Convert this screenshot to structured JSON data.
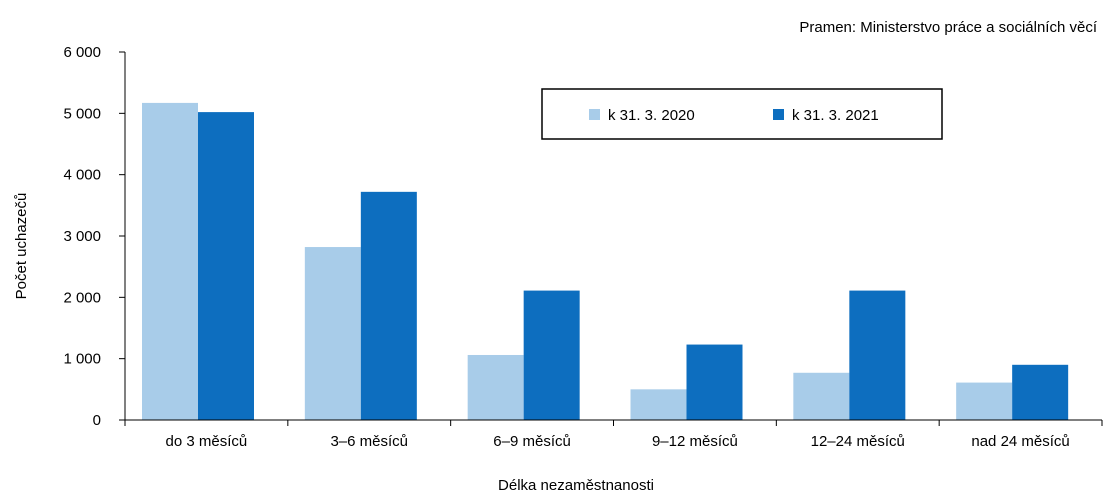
{
  "source_note": "Pramen: Ministerstvo práce a sociálních věcí",
  "chart_data": {
    "type": "bar",
    "categories": [
      "do 3 měsíců",
      "3–6 měsíců",
      "6–9 měsíců",
      "9–12 měsíců",
      "12–24 měsíců",
      "nad 24 měsíců"
    ],
    "series": [
      {
        "name": "k 31. 3. 2020",
        "values": [
          5170,
          2820,
          1060,
          500,
          770,
          610
        ],
        "color": "#a8cce9"
      },
      {
        "name": "k 31. 3. 2021",
        "values": [
          5020,
          3720,
          2110,
          1230,
          2110,
          900
        ],
        "color": "#0d6ebf"
      }
    ],
    "xlabel": "Délka nezaměstnanosti",
    "ylabel": "Počet uchazečů",
    "ylim": [
      0,
      6000
    ],
    "yticks": [
      0,
      1000,
      2000,
      3000,
      4000,
      5000,
      6000
    ],
    "ytick_labels": [
      "0",
      "1 000",
      "2 000",
      "3 000",
      "4 000",
      "5 000",
      "6 000"
    ],
    "legend_position": "top-right",
    "grid": false
  }
}
